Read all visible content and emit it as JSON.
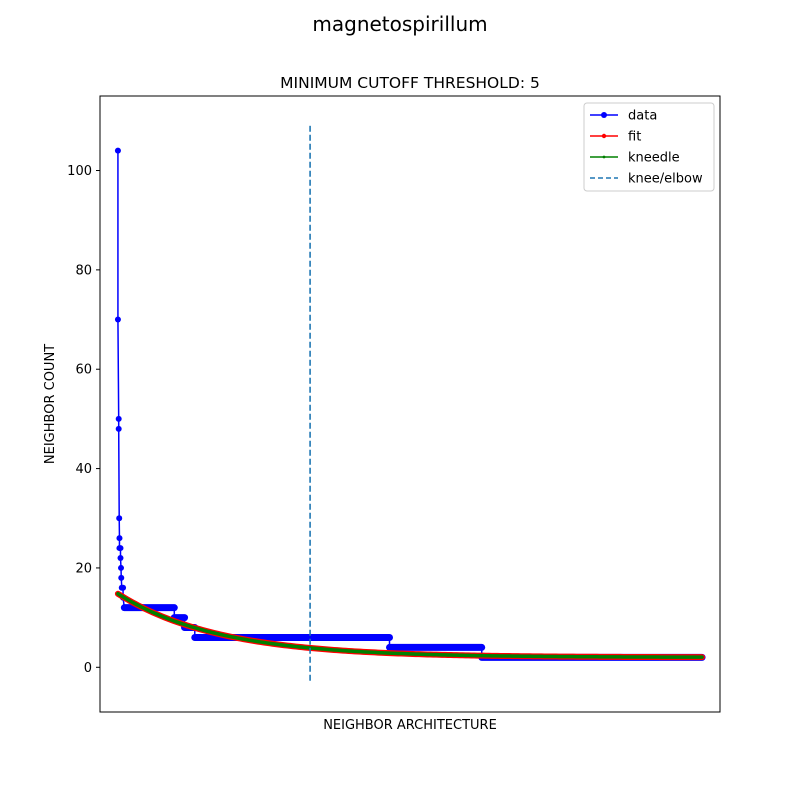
{
  "figure": {
    "suptitle": "magnetospirillum"
  },
  "chart_data": {
    "type": "line",
    "title": "MINIMUM CUTOFF THRESHOLD: 5",
    "xlabel": "NEIGHBOR ARCHITECTURE",
    "ylabel": "NEIGHBOR COUNT",
    "x_tick_labels": "none",
    "xlim": [
      -7,
      235
    ],
    "ylim": [
      -9,
      115
    ],
    "yticks": [
      0,
      20,
      40,
      60,
      80,
      100
    ],
    "legend_position": "upper-right",
    "knee_x": 75,
    "knee_line_range": [
      -3,
      109
    ],
    "colors": {
      "data": "#0000ff",
      "fit": "#ff0000",
      "kneedle": "#008000",
      "knee": "#1f77b4"
    },
    "series": [
      {
        "name": "data",
        "color": "#0000ff",
        "steps": [
          {
            "x": 0,
            "y": 104
          },
          {
            "x": 0,
            "y": 70
          },
          {
            "x": 0.3,
            "y": 50
          },
          {
            "x": 0.3,
            "y": 48
          },
          {
            "x": 0.5,
            "y": 30
          },
          {
            "x": 0.6,
            "y": 26
          },
          {
            "x": 0.6,
            "y": 24
          },
          {
            "x": 1,
            "y": 24
          },
          {
            "x": 1,
            "y": 22
          },
          {
            "x": 1.2,
            "y": 20
          },
          {
            "x": 1.3,
            "y": 18
          },
          {
            "x": 1.5,
            "y": 16
          },
          {
            "x": 2,
            "y": 16
          },
          {
            "x": 2,
            "y": 14
          },
          {
            "x": 2.5,
            "y": 12
          },
          {
            "x": 22,
            "y": 12
          },
          {
            "x": 22,
            "y": 10
          },
          {
            "x": 26,
            "y": 10
          },
          {
            "x": 26,
            "y": 8
          },
          {
            "x": 30,
            "y": 8
          },
          {
            "x": 30,
            "y": 6
          },
          {
            "x": 106,
            "y": 6
          },
          {
            "x": 106,
            "y": 4
          },
          {
            "x": 142,
            "y": 4
          },
          {
            "x": 142,
            "y": 2
          },
          {
            "x": 228,
            "y": 2
          }
        ]
      },
      {
        "name": "fit",
        "color": "#ff0000",
        "curve": {
          "form": "exp_decay",
          "a": 12.8,
          "k": 0.0255,
          "c": 2.0,
          "x_start": 0,
          "x_end": 228
        }
      },
      {
        "name": "kneedle",
        "color": "#008000",
        "curve": {
          "form": "exp_decay",
          "a": 12.8,
          "k": 0.0255,
          "c": 2.0,
          "x_start": 0,
          "x_end": 228
        }
      },
      {
        "name": "knee/elbow",
        "color": "#1f77b4",
        "style": "dashed"
      }
    ]
  }
}
